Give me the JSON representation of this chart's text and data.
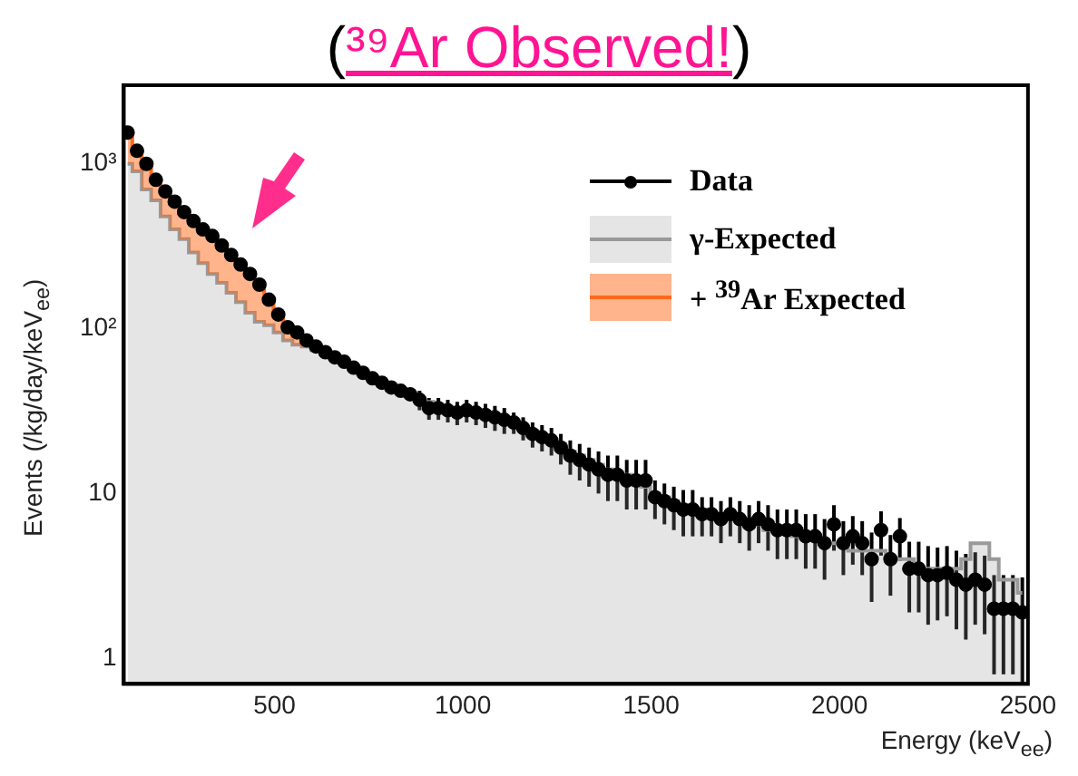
{
  "chart_data": {
    "type": "scatter",
    "title": "(³⁹Ar Observed!)",
    "xlabel": "Energy (keV$_{ee}$)",
    "ylabel": "Events (/kg/day/keV$_{ee}$)",
    "log": "y",
    "grid": false,
    "legend": "top right",
    "xlim": [
      100,
      2500
    ],
    "xticks": [
      500,
      1000,
      1500,
      2000,
      2500
    ],
    "ylim": [
      0.7,
      3000
    ],
    "yticks": [
      1,
      10,
      {
        "value": 100,
        "label": "10²"
      },
      {
        "value": 1000,
        "label": "10³"
      }
    ],
    "x": [
      110,
      135,
      160,
      185,
      210,
      235,
      260,
      285,
      310,
      335,
      360,
      385,
      410,
      435,
      460,
      485,
      510,
      535,
      560,
      585,
      610,
      635,
      660,
      685,
      710,
      735,
      760,
      785,
      810,
      835,
      860,
      885,
      910,
      935,
      960,
      985,
      1010,
      1035,
      1060,
      1085,
      1110,
      1135,
      1160,
      1185,
      1210,
      1235,
      1260,
      1285,
      1310,
      1335,
      1360,
      1385,
      1410,
      1435,
      1460,
      1485,
      1510,
      1535,
      1560,
      1585,
      1610,
      1635,
      1660,
      1685,
      1710,
      1735,
      1760,
      1785,
      1810,
      1835,
      1860,
      1885,
      1910,
      1935,
      1960,
      1985,
      2010,
      2035,
      2060,
      2085,
      2110,
      2135,
      2160,
      2185,
      2210,
      2235,
      2260,
      2285,
      2310,
      2335,
      2360,
      2385,
      2410,
      2435,
      2460,
      2485
    ],
    "series": [
      {
        "name": "γ-Expected",
        "type": "area",
        "color": "#999999",
        "values": [
          1000,
          900,
          700,
          600,
          480,
          400,
          350,
          290,
          250,
          215,
          190,
          165,
          145,
          125,
          110,
          105,
          95,
          85,
          80,
          78,
          74,
          70,
          66,
          62,
          58,
          54,
          51,
          48,
          45,
          43,
          41,
          38,
          36,
          34,
          33,
          32,
          31,
          31,
          30,
          29,
          28,
          27,
          25,
          24,
          22,
          21,
          20,
          18,
          17,
          16,
          15,
          14,
          13.5,
          13,
          12,
          11,
          10,
          9.5,
          9,
          8.5,
          8,
          8,
          7.5,
          7,
          7,
          7,
          6.5,
          6.5,
          6,
          6,
          6,
          5.5,
          5.5,
          5.5,
          5,
          5,
          5,
          4.5,
          4.5,
          4.5,
          4.5,
          4,
          4,
          4,
          3.5,
          3.5,
          3.5,
          3.5,
          3.5,
          4,
          5,
          5,
          4,
          3,
          3,
          2.5
        ]
      },
      {
        "name": "+ $^{39}$Ar Expected",
        "type": "step",
        "color": "#ff6a1a",
        "values": [
          1450,
          1150,
          950,
          800,
          680,
          580,
          500,
          440,
          395,
          355,
          315,
          275,
          240,
          210,
          182,
          150,
          125,
          105,
          90,
          80,
          null,
          null,
          null,
          null,
          null,
          null,
          null,
          null,
          null,
          null,
          null,
          null,
          null,
          null,
          null,
          null,
          null,
          null,
          null,
          null,
          null,
          null,
          null,
          null,
          null,
          null,
          null,
          null,
          null,
          null,
          null,
          null,
          null,
          null,
          null,
          null,
          null,
          null,
          null,
          null,
          null,
          null,
          null,
          null,
          null,
          null,
          null,
          null,
          null,
          null,
          null,
          null,
          null,
          null,
          null,
          null,
          null,
          null,
          null,
          null,
          null,
          null,
          null,
          null,
          null,
          null,
          null,
          null,
          null,
          null,
          null,
          null,
          null,
          null,
          null,
          null
        ],
        "lower": [
          1000,
          900,
          700,
          600,
          480,
          400,
          350,
          290,
          250,
          215,
          190,
          165,
          145,
          125,
          110,
          105,
          95,
          85,
          80,
          78,
          null,
          null,
          null,
          null,
          null,
          null,
          null,
          null,
          null,
          null,
          null,
          null,
          null,
          null,
          null,
          null,
          null,
          null,
          null,
          null,
          null,
          null,
          null,
          null,
          null,
          null,
          null,
          null,
          null,
          null,
          null,
          null,
          null,
          null,
          null,
          null,
          null,
          null,
          null,
          null,
          null,
          null,
          null,
          null,
          null,
          null,
          null,
          null,
          null,
          null,
          null,
          null,
          null,
          null,
          null,
          null,
          null,
          null,
          null,
          null,
          null,
          null,
          null,
          null,
          null,
          null,
          null,
          null,
          null,
          null,
          null,
          null,
          null,
          null,
          null,
          null
        ],
        "upper": [
          1450,
          1150,
          950,
          800,
          680,
          580,
          500,
          440,
          395,
          355,
          315,
          275,
          240,
          210,
          182,
          150,
          125,
          105,
          90,
          80,
          null,
          null,
          null,
          null,
          null,
          null,
          null,
          null,
          null,
          null,
          null,
          null,
          null,
          null,
          null,
          null,
          null,
          null,
          null,
          null,
          null,
          null,
          null,
          null,
          null,
          null,
          null,
          null,
          null,
          null,
          null,
          null,
          null,
          null,
          null,
          null,
          null,
          null,
          null,
          null,
          null,
          null,
          null,
          null,
          null,
          null,
          null,
          null,
          null,
          null,
          null,
          null,
          null,
          null,
          null,
          null,
          null,
          null,
          null,
          null,
          null,
          null,
          null,
          null,
          null,
          null,
          null,
          null,
          null,
          null,
          null,
          null,
          null,
          null,
          null,
          null
        ]
      },
      {
        "name": "Data",
        "marker": "circle",
        "color": "#000000",
        "values": [
          1550,
          1200,
          1000,
          800,
          680,
          590,
          510,
          450,
          400,
          365,
          320,
          280,
          245,
          215,
          185,
          150,
          122,
          102,
          95,
          85,
          78,
          72,
          67,
          63,
          58,
          54,
          50,
          47,
          44,
          42,
          40,
          37,
          33,
          33,
          32,
          31,
          32,
          31,
          30,
          29,
          28,
          27,
          25,
          23,
          22,
          21,
          19,
          17,
          16,
          15,
          14,
          13,
          13,
          12,
          12,
          12,
          9.5,
          9,
          8.5,
          8,
          8,
          7.5,
          7.5,
          7,
          7.5,
          7,
          6.5,
          7,
          6.5,
          6,
          6,
          6,
          5.5,
          5.5,
          5,
          6.5,
          5,
          5.5,
          5,
          4,
          6,
          4,
          5.5,
          3.5,
          3.5,
          3.2,
          3.2,
          3.3,
          3,
          2.8,
          3,
          2.8,
          2,
          2,
          2,
          1.9
        ],
        "errors": [
          null,
          null,
          null,
          null,
          null,
          null,
          null,
          null,
          null,
          null,
          null,
          null,
          null,
          null,
          null,
          null,
          null,
          null,
          null,
          null,
          null,
          null,
          null,
          null,
          null,
          null,
          null,
          null,
          null,
          null,
          null,
          5,
          5,
          5,
          5,
          5,
          5,
          5,
          5,
          5,
          5,
          4,
          4,
          4,
          4,
          4,
          4,
          4,
          4,
          4,
          4,
          4,
          4,
          4,
          4,
          4,
          2.5,
          2.5,
          2.5,
          2.5,
          2.5,
          2,
          2,
          2,
          2,
          2,
          2,
          2,
          2,
          2,
          2,
          2,
          2,
          2,
          2,
          2,
          1.8,
          1.8,
          1.8,
          1.8,
          1.8,
          1.6,
          1.6,
          1.6,
          1.6,
          1.6,
          1.5,
          1.5,
          1.5,
          1.5,
          1.4,
          1.4,
          1.2,
          1.2,
          1.2,
          1.2
        ]
      }
    ]
  }
}
